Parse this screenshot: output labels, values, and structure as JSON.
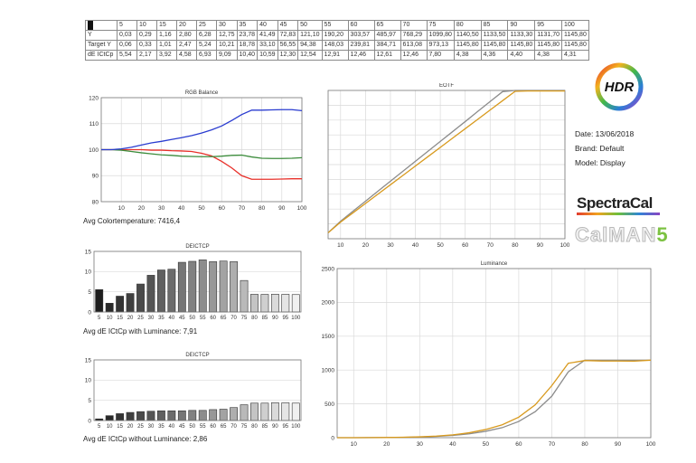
{
  "table": {
    "columns": [
      "5",
      "10",
      "15",
      "20",
      "25",
      "30",
      "35",
      "40",
      "45",
      "50",
      "55",
      "60",
      "65",
      "70",
      "75",
      "80",
      "85",
      "90",
      "95",
      "100"
    ],
    "rows": [
      {
        "label": "Y",
        "values": [
          "0,03",
          "0,29",
          "1,16",
          "2,80",
          "6,28",
          "12,75",
          "23,78",
          "41,49",
          "72,83",
          "121,10",
          "190,20",
          "303,57",
          "485,97",
          "768,29",
          "1099,80",
          "1140,50",
          "1133,50",
          "1133,30",
          "1131,70",
          "1145,80"
        ]
      },
      {
        "label": "Target Y",
        "values": [
          "0,06",
          "0,33",
          "1,01",
          "2,47",
          "5,24",
          "10,21",
          "18,78",
          "33,10",
          "56,55",
          "94,38",
          "148,03",
          "239,81",
          "384,71",
          "613,08",
          "973,13",
          "1145,80",
          "1145,80",
          "1145,80",
          "1145,80",
          "1145,80"
        ]
      },
      {
        "label": "dE ICtCp",
        "values": [
          "5,54",
          "2,17",
          "3,92",
          "4,58",
          "6,93",
          "9,09",
          "10,40",
          "10,59",
          "12,30",
          "12,54",
          "12,91",
          "12,46",
          "12,61",
          "12,46",
          "7,80",
          "4,38",
          "4,36",
          "4,40",
          "4,38",
          "4,31"
        ]
      }
    ]
  },
  "captions": {
    "rgb": "Avg Colortemperature: 7416,4",
    "de1": "Avg dE ICtCp with Luminance: 7,91",
    "de2": "Avg dE ICtCp without Luminance: 2,86"
  },
  "info": {
    "date": "Date: 13/06/2018",
    "brand": "Brand: Default",
    "model": "Model: Display"
  },
  "logos": {
    "hdr": "HDR",
    "spectracal": "SpectraCal",
    "calman": "CalMAN",
    "calman_num": "5"
  },
  "colors": {
    "red": "#e8302a",
    "green": "#3c8c3c",
    "blue": "#2a3cd0",
    "gray": "#8c8c8c",
    "orange": "#d89a1e",
    "grid": "#d9d9d9"
  },
  "chart_data": [
    {
      "type": "line",
      "title": "RGB Balance",
      "x": [
        0,
        5,
        10,
        15,
        20,
        25,
        30,
        35,
        40,
        45,
        50,
        55,
        60,
        65,
        70,
        75,
        80,
        85,
        90,
        95,
        100
      ],
      "xticks": [
        "10",
        "20",
        "30",
        "40",
        "50",
        "60",
        "70",
        "80",
        "90",
        "100"
      ],
      "xlim": [
        0,
        100
      ],
      "ylim": [
        80,
        120
      ],
      "yticks": [
        "80",
        "90",
        "100",
        "110",
        "120"
      ],
      "series": [
        {
          "name": "Red",
          "color": "#e8302a",
          "values": [
            100,
            100,
            100,
            100,
            100,
            99.8,
            99.8,
            99.6,
            99.5,
            99.3,
            98.6,
            97.6,
            95.5,
            93.0,
            90.0,
            88.6,
            88.6,
            88.6,
            88.7,
            88.8,
            88.8
          ]
        },
        {
          "name": "Green",
          "color": "#3c8c3c",
          "values": [
            100,
            100,
            99.8,
            99.3,
            98.8,
            98.4,
            98.0,
            97.8,
            97.5,
            97.4,
            97.3,
            97.3,
            97.5,
            97.8,
            97.9,
            97.2,
            96.7,
            96.6,
            96.6,
            96.7,
            96.9
          ]
        },
        {
          "name": "Blue",
          "color": "#2a3cd0",
          "values": [
            100,
            100,
            100.3,
            100.9,
            101.8,
            102.6,
            103.2,
            103.9,
            104.6,
            105.4,
            106.4,
            107.6,
            109.1,
            111.2,
            113.5,
            115.2,
            115.2,
            115.3,
            115.4,
            115.4,
            115.0
          ]
        }
      ]
    },
    {
      "type": "bar",
      "title": "DEICTCP",
      "categories": [
        "5",
        "10",
        "15",
        "20",
        "25",
        "30",
        "35",
        "40",
        "45",
        "50",
        "55",
        "60",
        "65",
        "70",
        "75",
        "80",
        "85",
        "90",
        "95",
        "100"
      ],
      "values": [
        5.54,
        2.17,
        3.92,
        4.58,
        6.93,
        9.09,
        10.4,
        10.59,
        12.3,
        12.54,
        12.91,
        12.46,
        12.61,
        12.46,
        7.8,
        4.38,
        4.36,
        4.4,
        4.38,
        4.31
      ],
      "ylim": [
        0,
        15
      ],
      "yticks": [
        "0",
        "5",
        "10",
        "15"
      ]
    },
    {
      "type": "bar",
      "title": "DEICTCP",
      "categories": [
        "5",
        "10",
        "15",
        "20",
        "25",
        "30",
        "35",
        "40",
        "45",
        "50",
        "55",
        "60",
        "65",
        "70",
        "75",
        "80",
        "85",
        "90",
        "95",
        "100"
      ],
      "values": [
        0.4,
        1.2,
        1.7,
        2.0,
        2.2,
        2.3,
        2.4,
        2.4,
        2.4,
        2.5,
        2.5,
        2.7,
        2.8,
        3.2,
        3.9,
        4.3,
        4.3,
        4.4,
        4.4,
        4.3
      ],
      "ylim": [
        0,
        15
      ],
      "yticks": [
        "0",
        "5",
        "10",
        "15"
      ]
    },
    {
      "type": "line",
      "title": "EOTF",
      "x": [
        5,
        10,
        15,
        20,
        25,
        30,
        35,
        40,
        45,
        50,
        55,
        60,
        65,
        70,
        75,
        80,
        85,
        90,
        95,
        100
      ],
      "xticks": [
        "10",
        "20",
        "30",
        "40",
        "50",
        "60",
        "70",
        "80",
        "90",
        "100"
      ],
      "xlim": [
        5,
        100
      ],
      "ylim": [
        0,
        100
      ],
      "series": [
        {
          "name": "Target",
          "color": "#8c8c8c",
          "values": [
            4,
            11.8,
            18.6,
            25.3,
            32.1,
            38.8,
            45.5,
            52.2,
            58.9,
            65.6,
            72.3,
            79.0,
            85.8,
            92.5,
            99.2,
            100,
            100,
            100,
            100,
            100
          ]
        },
        {
          "name": "Measured",
          "color": "#d89a1e",
          "values": [
            4,
            11.2,
            17.5,
            23.8,
            30.1,
            36.4,
            42.7,
            49.0,
            55.3,
            61.6,
            67.9,
            74.2,
            80.5,
            86.8,
            93.1,
            99.4,
            99.6,
            99.6,
            99.6,
            99.6
          ]
        }
      ]
    },
    {
      "type": "line",
      "title": "Luminance",
      "x": [
        5,
        10,
        15,
        20,
        25,
        30,
        35,
        40,
        45,
        50,
        55,
        60,
        65,
        70,
        75,
        80,
        85,
        90,
        95,
        100
      ],
      "xticks": [
        "10",
        "20",
        "30",
        "40",
        "50",
        "60",
        "70",
        "80",
        "90",
        "100"
      ],
      "xlim": [
        5,
        100
      ],
      "ylim": [
        0,
        2500
      ],
      "yticks": [
        "0",
        "500",
        "1000",
        "1500",
        "2000",
        "2500"
      ],
      "series": [
        {
          "name": "Target Y",
          "color": "#8c8c8c",
          "values": [
            0.06,
            0.33,
            1.01,
            2.47,
            5.24,
            10.21,
            18.78,
            33.1,
            56.55,
            94.38,
            148.03,
            239.81,
            384.71,
            613.08,
            973.13,
            1145.8,
            1145.8,
            1145.8,
            1145.8,
            1145.8
          ]
        },
        {
          "name": "Y",
          "color": "#d89a1e",
          "values": [
            0.03,
            0.29,
            1.16,
            2.8,
            6.28,
            12.75,
            23.78,
            41.49,
            72.83,
            121.1,
            190.2,
            303.57,
            485.97,
            768.29,
            1099.8,
            1140.5,
            1133.5,
            1133.3,
            1131.7,
            1145.8
          ]
        }
      ]
    }
  ]
}
